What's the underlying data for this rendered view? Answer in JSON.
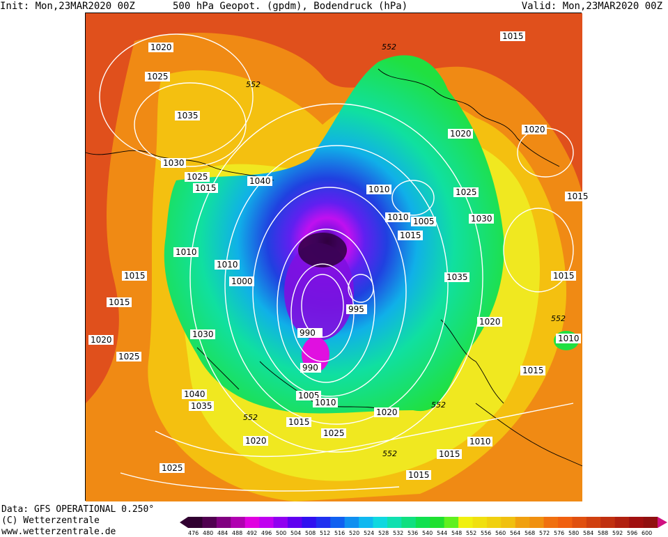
{
  "header": {
    "init": "Init: Mon,23MAR2020 00Z",
    "title": "500 hPa Geopot. (gpdm), Bodendruck (hPa)",
    "valid": "Valid: Mon,23MAR2020 00Z"
  },
  "footer": {
    "data_source": "Data: GFS OPERATIONAL 0.250°",
    "copyright": "(C) Wetterzentrale",
    "url": "www.wetterzentrale.de"
  },
  "colors": {
    "ocean_warm": "#e0501c",
    "ridge": "#f0a010",
    "yellow": "#f4e010",
    "green": "#20e040",
    "cyan": "#10c0e0",
    "blue": "#2040e0",
    "purple": "#8010e0",
    "magenta": "#e010e0",
    "core": "#300040",
    "isobar": "#ffffff",
    "coast": "#000000"
  },
  "legend": {
    "levels": [
      "476",
      "480",
      "484",
      "488",
      "492",
      "496",
      "500",
      "504",
      "508",
      "512",
      "516",
      "520",
      "524",
      "528",
      "532",
      "536",
      "540",
      "544",
      "548",
      "552",
      "556",
      "560",
      "564",
      "568",
      "572",
      "576",
      "580",
      "584",
      "588",
      "592",
      "596",
      "600"
    ],
    "colors": [
      "#300030",
      "#500050",
      "#800080",
      "#b000b0",
      "#e000e0",
      "#c000f0",
      "#9000f0",
      "#6000f0",
      "#3010f0",
      "#2030f0",
      "#1060f0",
      "#1090f0",
      "#10b8f0",
      "#10d8e0",
      "#10e0b0",
      "#10e080",
      "#10e050",
      "#20e030",
      "#60f020",
      "#f0f010",
      "#f0e010",
      "#f0d010",
      "#f0c010",
      "#f0a010",
      "#f09010",
      "#f07010",
      "#f06010",
      "#e05010",
      "#d04010",
      "#c03010",
      "#b02010",
      "#a01010",
      "#901010"
    ]
  },
  "map_labels": {
    "isobars": [
      "1020",
      "1025",
      "1035",
      "1030",
      "1025",
      "1015",
      "1010",
      "1010",
      "1015",
      "1015",
      "1020",
      "1025",
      "1000",
      "1030",
      "1040",
      "1035",
      "1020",
      "1015",
      "1025",
      "1040",
      "1010",
      "1010",
      "1005",
      "1015",
      "1020",
      "1025",
      "1030",
      "1035",
      "1020",
      "1015",
      "1020",
      "1015",
      "1015",
      "1010",
      "1015",
      "1010",
      "1020",
      "990",
      "995",
      "990",
      "1005",
      "1010",
      "1015",
      "1025",
      "1015"
    ],
    "geopotential": [
      "552",
      "552",
      "552",
      "552",
      "552",
      "552"
    ]
  }
}
